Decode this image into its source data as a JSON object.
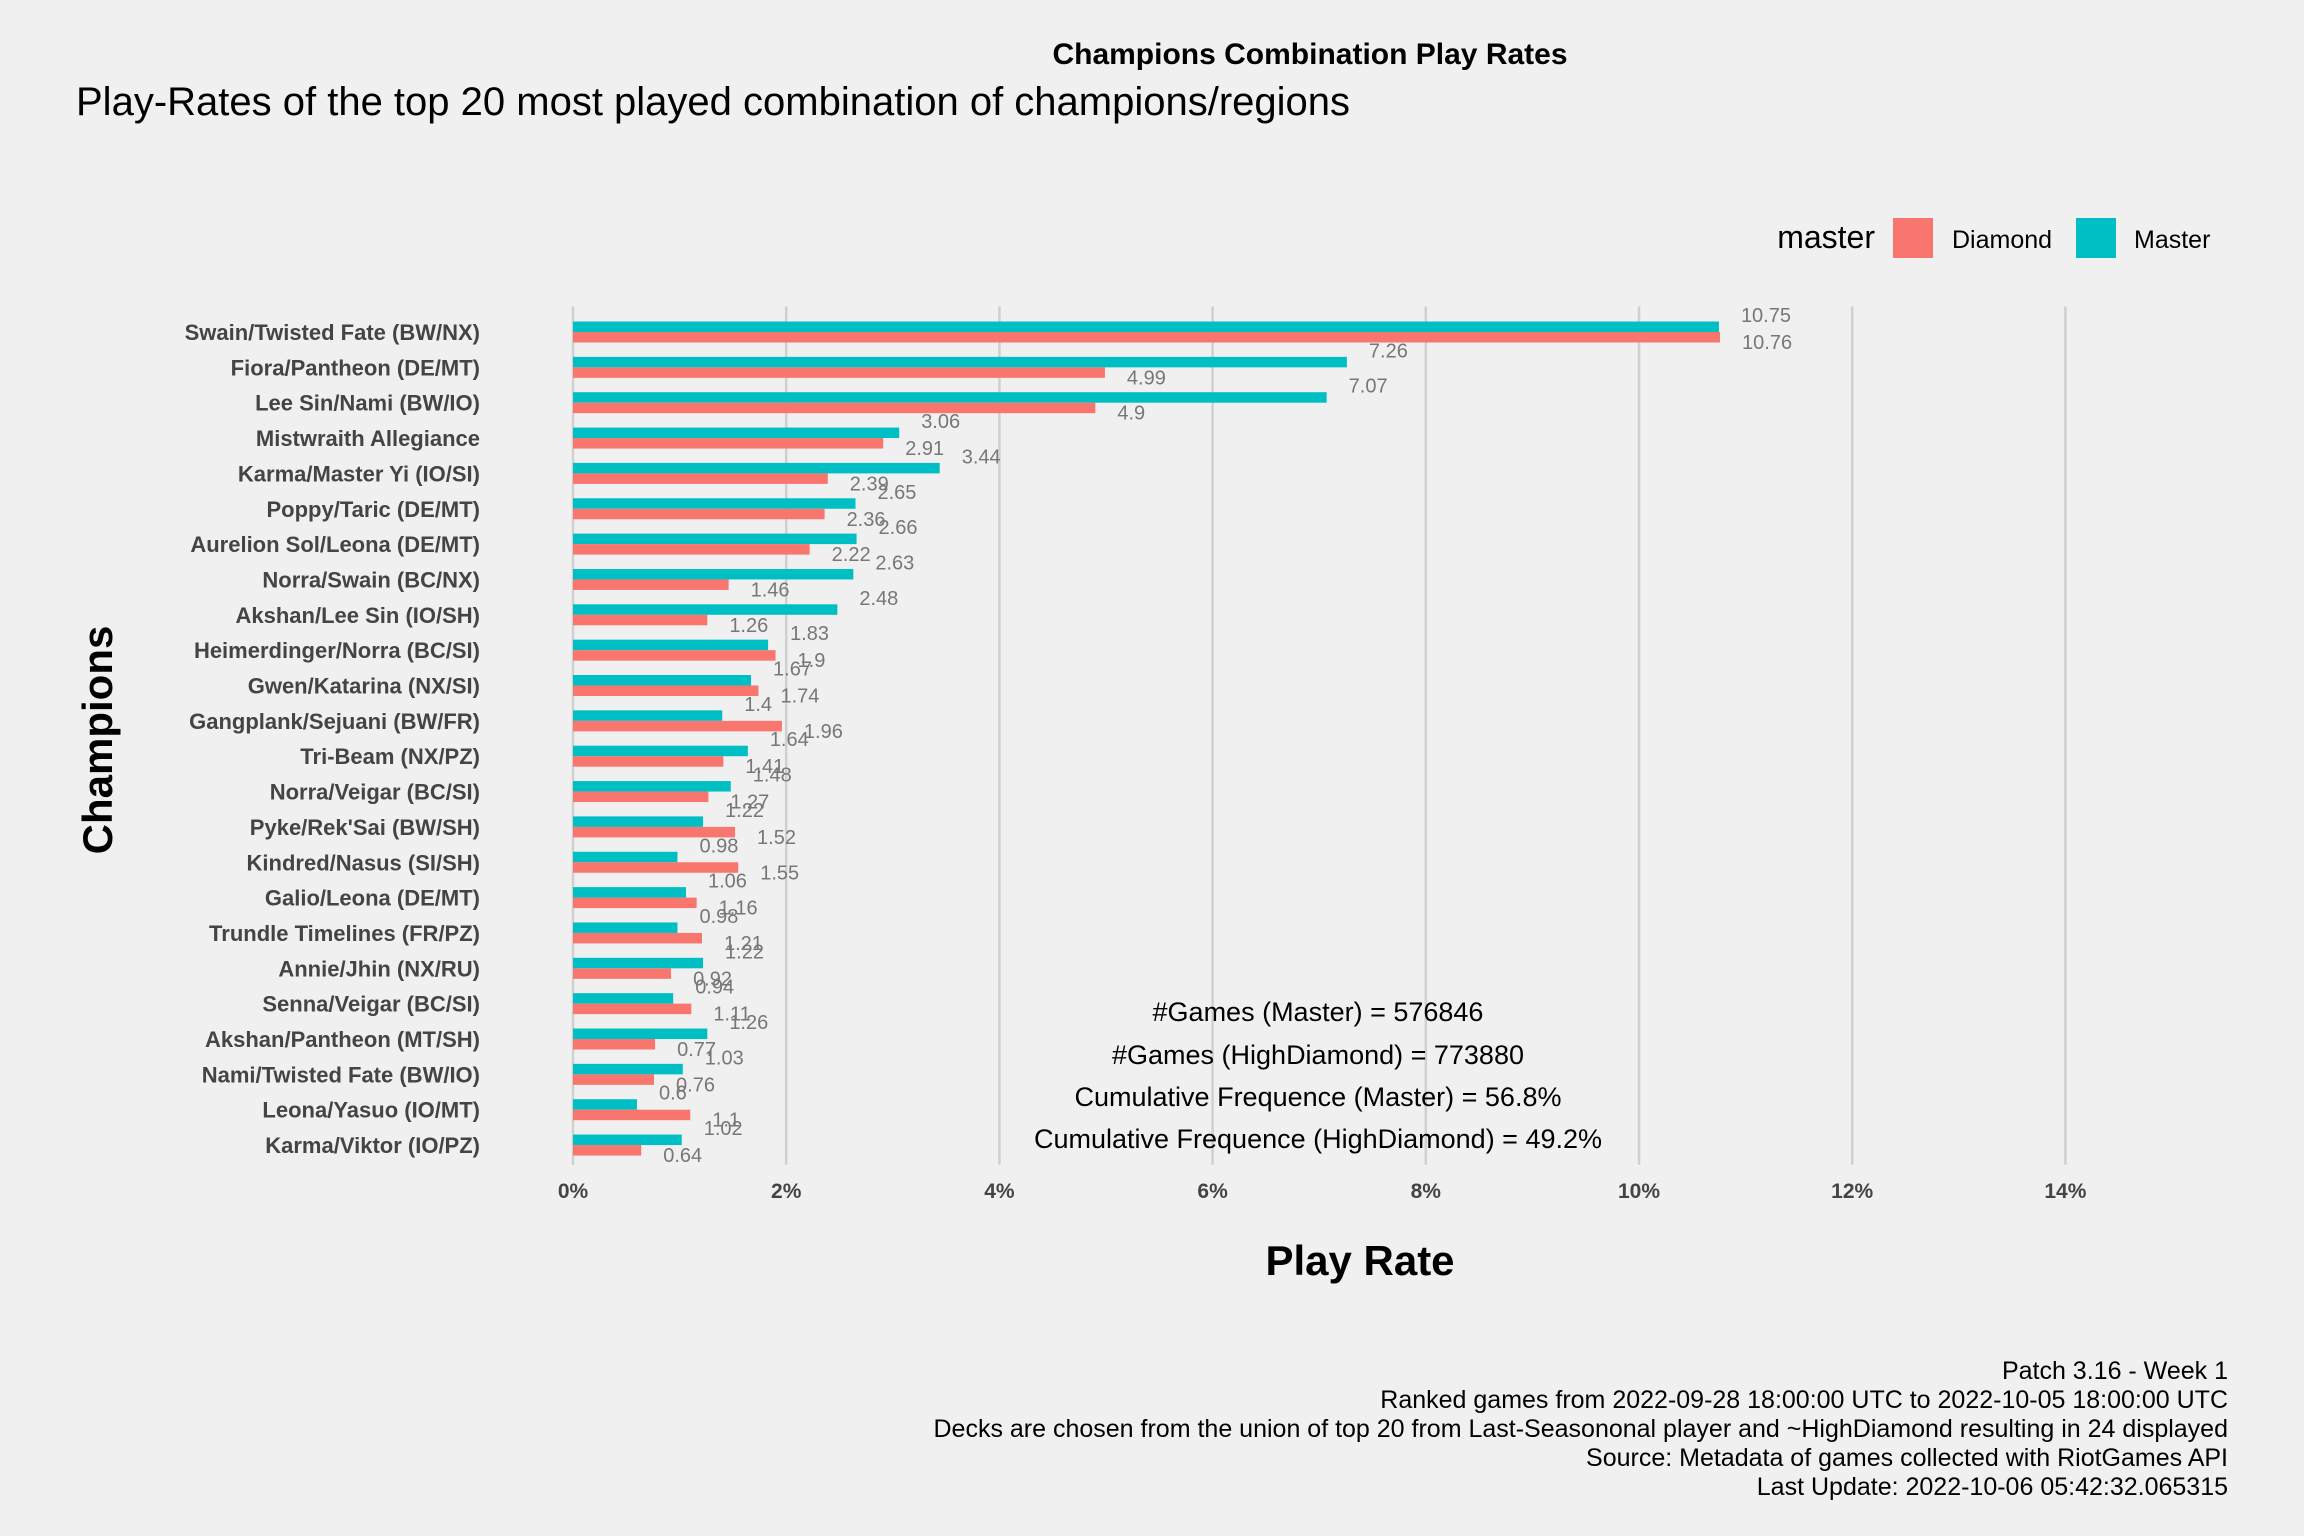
{
  "header": {
    "title": "Champions Combination Play Rates",
    "subtitle": "Play-Rates of the top 20 most played combination of champions/regions"
  },
  "legend": {
    "title": "master",
    "items": [
      {
        "label": "Diamond",
        "color": "#F8766D"
      },
      {
        "label": "Master",
        "color": "#00BFC4"
      }
    ]
  },
  "annotations": {
    "line1": "#Games (Master) = 576846",
    "line2": "#Games (HighDiamond) = 773880",
    "line3": "Cumulative Frequence (Master) = 56.8%",
    "line4": "Cumulative Frequence (HighDiamond) = 49.2%"
  },
  "caption": {
    "line1": "Patch 3.16 - Week 1",
    "line2": "Ranked games from 2022-09-28 18:00:00 UTC to 2022-10-05 18:00:00 UTC",
    "line3": "Decks are chosen from the union of top 20 from Last-Seasononal player and ~HighDiamond resulting in 24 displayed",
    "line4": "Source: Metadata of games collected with RiotGames API",
    "line5": "Last Update: 2022-10-06 05:42:32.065315"
  },
  "chart_data": {
    "type": "bar",
    "orientation": "horizontal",
    "xlabel": "Play Rate",
    "ylabel": "Champions",
    "xlim": [
      0,
      14.5
    ],
    "xticks": [
      0,
      2,
      4,
      6,
      8,
      10,
      12,
      14
    ],
    "xtick_labels": [
      "0%",
      "2%",
      "4%",
      "6%",
      "8%",
      "10%",
      "12%",
      "14%"
    ],
    "grid": "vertical major",
    "legend_position": "top-right",
    "categories": [
      "Swain/Twisted Fate (BW/NX)",
      "Fiora/Pantheon (DE/MT)",
      "Lee Sin/Nami (BW/IO)",
      "Mistwraith Allegiance",
      "Karma/Master Yi (IO/SI)",
      "Poppy/Taric (DE/MT)",
      "Aurelion Sol/Leona (DE/MT)",
      "Norra/Swain (BC/NX)",
      "Akshan/Lee Sin (IO/SH)",
      "Heimerdinger/Norra (BC/SI)",
      "Gwen/Katarina (NX/SI)",
      "Gangplank/Sejuani (BW/FR)",
      "Tri-Beam (NX/PZ)",
      "Norra/Veigar (BC/SI)",
      "Pyke/Rek'Sai (BW/SH)",
      "Kindred/Nasus (SI/SH)",
      "Galio/Leona (DE/MT)",
      "Trundle Timelines (FR/PZ)",
      "Annie/Jhin (NX/RU)",
      "Senna/Veigar (BC/SI)",
      "Akshan/Pantheon (MT/SH)",
      "Nami/Twisted Fate (BW/IO)",
      "Leona/Yasuo (IO/MT)",
      "Karma/Viktor (IO/PZ)"
    ],
    "series": [
      {
        "name": "Master",
        "color": "#00BFC4",
        "values": [
          10.75,
          7.26,
          7.07,
          3.06,
          3.44,
          2.65,
          2.66,
          2.63,
          2.48,
          1.83,
          1.67,
          1.4,
          1.64,
          1.48,
          1.22,
          0.98,
          1.06,
          0.98,
          1.22,
          0.94,
          1.26,
          1.03,
          0.6,
          1.02
        ],
        "labels": [
          "10.75",
          "7.26",
          "7.07",
          "3.06",
          "3.44",
          "2.65",
          "2.66",
          "2.63",
          "2.48",
          "1.83",
          "1.67",
          "1.4",
          "1.64",
          "1.48",
          "1.22",
          "0.98",
          "1.06",
          "0.98",
          "1.22",
          "0.94",
          "1.26",
          "1.03",
          "0.6",
          "1.02"
        ]
      },
      {
        "name": "Diamond",
        "color": "#F8766D",
        "values": [
          10.76,
          4.99,
          4.9,
          2.91,
          2.39,
          2.36,
          2.22,
          1.46,
          1.26,
          1.9,
          1.74,
          1.96,
          1.41,
          1.27,
          1.52,
          1.55,
          1.16,
          1.21,
          0.92,
          1.11,
          0.77,
          0.76,
          1.1,
          0.64
        ],
        "labels": [
          "10.76",
          "4.99",
          "4.9",
          "2.91",
          "2.39",
          "2.36",
          "2.22",
          "1.46",
          "1.26",
          "1.9",
          "1.74",
          "1.96",
          "1.41",
          "1.27",
          "1.52",
          "1.55",
          "1.16",
          "1.21",
          "0.92",
          "1.11",
          "0.77",
          "0.76",
          "1.1",
          "0.64"
        ]
      }
    ]
  }
}
